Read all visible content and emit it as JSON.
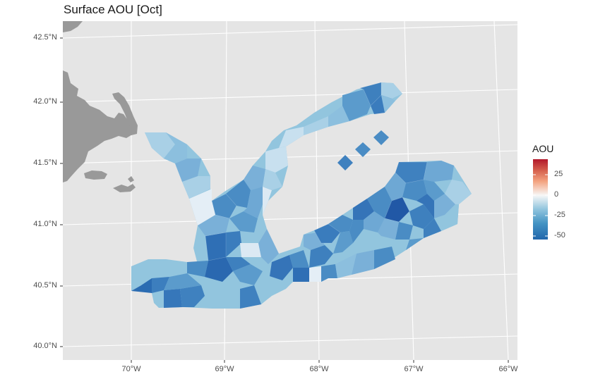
{
  "title": "Surface AOU [Oct]",
  "y_ticks": [
    "42.5°N",
    "42.0°N",
    "41.5°N",
    "41.0°N",
    "40.5°N",
    "40.0°N"
  ],
  "x_ticks": [
    "70°W",
    "69°W",
    "68°W",
    "67°W",
    "66°W"
  ],
  "legend": {
    "title": "AOU",
    "ticks": [
      "25",
      "0",
      "-25",
      "-50"
    ],
    "range": [
      -55,
      45
    ],
    "colors": [
      "#2166ac",
      "#4393c3",
      "#92c5de",
      "#f7f7f7",
      "#f4a582",
      "#d6604d",
      "#b2182b"
    ]
  },
  "colors": {
    "panel": "#e5e5e5",
    "grid": "#ffffff",
    "land": "#999999"
  }
}
